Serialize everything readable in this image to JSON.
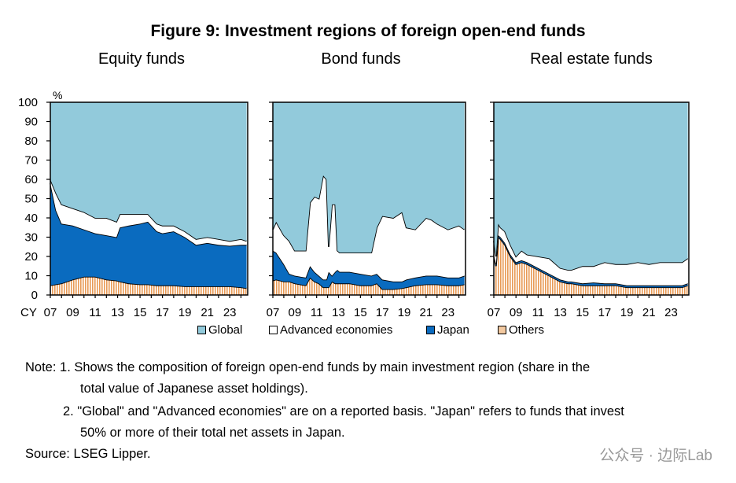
{
  "title": "Figure 9: Investment regions of foreign open-end funds",
  "colors": {
    "Global": "#92cadb",
    "Advanced economies": "#ffffff",
    "Japan": "#0a6bbf",
    "Others": "#e89a55"
  },
  "legend": [
    "Global",
    "Advanced economies",
    "Japan",
    "Others"
  ],
  "chart_data": [
    {
      "type": "area",
      "stacked": true,
      "title": "Equity funds",
      "ylabel": "%",
      "xlabel": "CY",
      "ylim": [
        0,
        100
      ],
      "yticks": [
        "0",
        "10",
        "20",
        "30",
        "40",
        "50",
        "60",
        "70",
        "80",
        "90",
        "100"
      ],
      "xticks": [
        "07",
        "09",
        "11",
        "13",
        "15",
        "17",
        "19",
        "21",
        "23"
      ],
      "x": [
        2007,
        2007.5,
        2008,
        2009,
        2010,
        2011,
        2012,
        2012.9,
        2013.2,
        2014,
        2015,
        2015.7,
        2016.5,
        2017,
        2018,
        2019,
        2020,
        2021,
        2022,
        2023,
        2024,
        2024.5
      ],
      "series": [
        {
          "name": "Others",
          "values": [
            5,
            5.5,
            6,
            8,
            9.5,
            9.5,
            8,
            7.5,
            7,
            6,
            5.5,
            5.5,
            5,
            5,
            5,
            4.5,
            4.5,
            4.5,
            4.5,
            4.5,
            4,
            3.5
          ]
        },
        {
          "name": "Japan",
          "values": [
            53,
            38.5,
            31,
            28,
            24.5,
            22.5,
            23,
            22.5,
            28,
            30,
            31.5,
            32.5,
            28,
            27,
            28,
            25.5,
            21.5,
            22.5,
            21.5,
            21,
            22,
            22.5
          ]
        },
        {
          "name": "Advanced economies",
          "values": [
            2,
            9,
            10,
            9,
            9,
            8,
            9,
            8,
            7,
            6,
            5,
            4,
            4,
            4,
            3,
            3,
            3,
            3,
            3,
            2.5,
            3,
            2
          ]
        },
        {
          "name": "Global",
          "values": [
            40,
            47,
            53,
            55,
            57,
            60,
            60,
            62,
            58,
            58,
            58,
            58,
            63,
            64,
            64,
            67,
            71,
            70,
            71,
            72,
            71,
            72
          ]
        }
      ]
    },
    {
      "type": "area",
      "stacked": true,
      "title": "Bond funds",
      "ylim": [
        0,
        100
      ],
      "xticks": [
        "07",
        "09",
        "11",
        "13",
        "15",
        "17",
        "19",
        "21",
        "23"
      ],
      "x": [
        2007,
        2007.3,
        2008,
        2008.5,
        2009,
        2010,
        2010.4,
        2010.8,
        2011.2,
        2011.6,
        2011.9,
        2012.1,
        2012.4,
        2012.7,
        2012.9,
        2013.1,
        2014,
        2015,
        2016,
        2016.5,
        2017,
        2018,
        2018.8,
        2019.2,
        2020,
        2021,
        2021.5,
        2022,
        2023,
        2024,
        2024.5
      ],
      "series": [
        {
          "name": "Others",
          "values": [
            7.5,
            8,
            7,
            7,
            6,
            5,
            9,
            7,
            6,
            4,
            4,
            4,
            7,
            6,
            6,
            6,
            6,
            5,
            5,
            6,
            3,
            3,
            3.5,
            4,
            5,
            5.5,
            5.5,
            5.5,
            5,
            5,
            5.5
          ]
        },
        {
          "name": "Japan",
          "values": [
            15.5,
            14,
            9,
            4,
            4,
            4,
            6,
            5,
            4,
            4,
            4,
            8,
            3,
            6,
            7,
            6,
            6,
            6,
            5,
            5,
            5,
            4,
            3.5,
            4,
            4,
            4.5,
            4.5,
            4.5,
            4,
            4,
            4.5
          ]
        },
        {
          "name": "Advanced economies",
          "values": [
            11,
            16,
            15,
            17,
            13,
            14,
            33,
            39,
            40,
            54,
            52,
            13,
            37,
            35,
            10,
            10,
            10,
            11,
            12,
            24,
            33,
            33,
            36,
            27,
            25,
            30,
            29,
            27,
            25,
            27,
            24
          ]
        },
        {
          "name": "Global",
          "values": [
            66,
            62,
            69,
            72,
            77,
            77,
            52,
            49,
            50,
            38,
            40,
            75,
            53,
            53,
            77,
            78,
            78,
            78,
            78,
            65,
            59,
            60,
            57,
            65,
            66,
            60,
            61,
            63,
            66,
            64,
            66
          ]
        }
      ]
    },
    {
      "type": "area",
      "stacked": true,
      "title": "Real estate funds",
      "ylim": [
        0,
        100
      ],
      "xticks": [
        "07",
        "09",
        "11",
        "13",
        "15",
        "17",
        "19",
        "21",
        "23"
      ],
      "x": [
        2007,
        2007.2,
        2007.4,
        2007.6,
        2008,
        2008.5,
        2009,
        2009.5,
        2010,
        2011,
        2012,
        2013,
        2013.7,
        2014,
        2015,
        2016,
        2017,
        2018,
        2019,
        2020,
        2021,
        2022,
        2023,
        2024,
        2024.5
      ],
      "series": [
        {
          "name": "Others",
          "values": [
            20,
            15,
            30,
            29,
            26,
            20,
            16,
            17,
            16,
            13,
            10,
            7,
            6,
            6,
            5,
            5,
            5,
            5,
            4,
            4,
            4,
            4,
            4,
            4,
            5
          ]
        },
        {
          "name": "Japan",
          "values": [
            1,
            1,
            1,
            1,
            1,
            1,
            1,
            1,
            1,
            1,
            1,
            1,
            1,
            1,
            1,
            1.5,
            1,
            1,
            1,
            1,
            1,
            1,
            1,
            1,
            1
          ]
        },
        {
          "name": "Advanced economies",
          "values": [
            7,
            4,
            6,
            5,
            6,
            5,
            3,
            5,
            4,
            6,
            8,
            6,
            6,
            6,
            9,
            8.5,
            11,
            10,
            11,
            12,
            11,
            12,
            12,
            12,
            13
          ]
        },
        {
          "name": "Global",
          "values": [
            72,
            80,
            63,
            65,
            67,
            74,
            80,
            77,
            79,
            80,
            81,
            86,
            87,
            87,
            85,
            85,
            83,
            84,
            84,
            83,
            84,
            83,
            83,
            83,
            81
          ]
        }
      ]
    }
  ],
  "notes": {
    "line1": "Note: 1. Shows the composition of foreign open-end funds by main investment region (share in the",
    "line1b": "total value of Japanese asset holdings).",
    "line2": "2. \"Global\" and \"Advanced economies\" are on a reported basis. \"Japan\" refers to funds that invest",
    "line2b": "50% or more of their total net assets in Japan.",
    "source": "Source: LSEG Lipper."
  },
  "watermark": "公众号 · 边际Lab"
}
